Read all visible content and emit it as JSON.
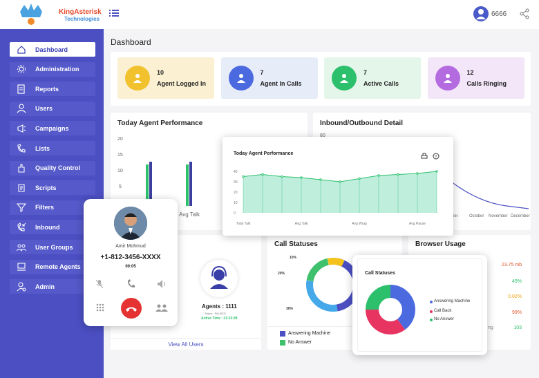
{
  "brand": {
    "line1": "KingAsterisk",
    "line2": "Technologies"
  },
  "header": {
    "user": "6666"
  },
  "sidebar": {
    "items": [
      {
        "label": "Dashboard",
        "icon": "home-icon"
      },
      {
        "label": "Administration",
        "icon": "gear-icon"
      },
      {
        "label": "Reports",
        "icon": "report-icon"
      },
      {
        "label": "Users",
        "icon": "user-icon"
      },
      {
        "label": "Campaigns",
        "icon": "megaphone-icon"
      },
      {
        "label": "Lists",
        "icon": "phone-icon"
      },
      {
        "label": "Quality Control",
        "icon": "hand-icon"
      },
      {
        "label": "Scripts",
        "icon": "script-icon"
      },
      {
        "label": "Filters",
        "icon": "filter-icon"
      },
      {
        "label": "Inbound",
        "icon": "inbound-call-icon"
      },
      {
        "label": "User Groups",
        "icon": "group-icon"
      },
      {
        "label": "Remote Agents",
        "icon": "remote-agent-icon"
      },
      {
        "label": "Admin",
        "icon": "admin-icon"
      }
    ]
  },
  "page_title": "Dashboard",
  "stats": [
    {
      "value": "10",
      "label": "Agent Logged In",
      "bg": "#fbf0d2",
      "circle": "#f2c12e"
    },
    {
      "value": "7",
      "label": "Agent In Calls",
      "bg": "#e6ecf8",
      "circle": "#4b6ae0"
    },
    {
      "value": "7",
      "label": "Active Calls",
      "bg": "#e4f5ea",
      "circle": "#2cc06c"
    },
    {
      "value": "12",
      "label": "Calls Ringing",
      "bg": "#f3e6f8",
      "circle": "#b46be0"
    }
  ],
  "perf_panel": {
    "title": "Today Agent Performance",
    "yticks": [
      "20",
      "15",
      "10",
      "5"
    ],
    "xlabel": "Avg Talk"
  },
  "inout_panel": {
    "title": "Inbound/Outbound Detail",
    "ytick": "80",
    "months": [
      "mber",
      "October",
      "November",
      "December"
    ]
  },
  "perf_card": {
    "title": "Today Agent Performance",
    "yticks": [
      "40",
      "30",
      "20",
      "10",
      "0"
    ],
    "xticks": [
      "Total Talk",
      "Avg Talk",
      "Avg Wrap",
      "Avg Pause"
    ]
  },
  "phone": {
    "name": "Amir Mohmud",
    "number": "+1-812-3456-XXXX",
    "timer": "00:05"
  },
  "agent_panel": {
    "agents": "Agents : 1111",
    "status": "Status : PAUSED",
    "active_time": "Active Time : 21:23:28",
    "view_all": "View All Users"
  },
  "call_status_panel": {
    "title": "Call Statuses",
    "labels": [
      "10%",
      "20%",
      "30%"
    ],
    "legend": [
      "Answering Machine",
      "No Answer"
    ]
  },
  "call_status_card": {
    "title": "Call Statuses",
    "legend": [
      "Answering Machine",
      "Call Back",
      "No Answer"
    ]
  },
  "browser_panel": {
    "title": "Browser Usage",
    "values": [
      "23.75 mb",
      "49%",
      "0.02%",
      "99%",
      "103"
    ],
    "partial": "ng"
  },
  "chart_data": [
    {
      "type": "line",
      "title": "Today Agent Performance",
      "x": [
        "Total Talk",
        "",
        "",
        "Avg Talk",
        "",
        "",
        "Avg Wrap",
        "",
        "",
        "Avg Pause",
        ""
      ],
      "values": [
        35,
        37,
        35,
        34,
        32,
        30,
        33,
        36,
        37,
        38,
        40
      ],
      "ylim": [
        0,
        40
      ]
    },
    {
      "type": "pie",
      "title": "Call Statuses",
      "categories": [
        "Answering Machine",
        "Call Back",
        "No Answer"
      ],
      "values": [
        40,
        35,
        25
      ]
    }
  ]
}
